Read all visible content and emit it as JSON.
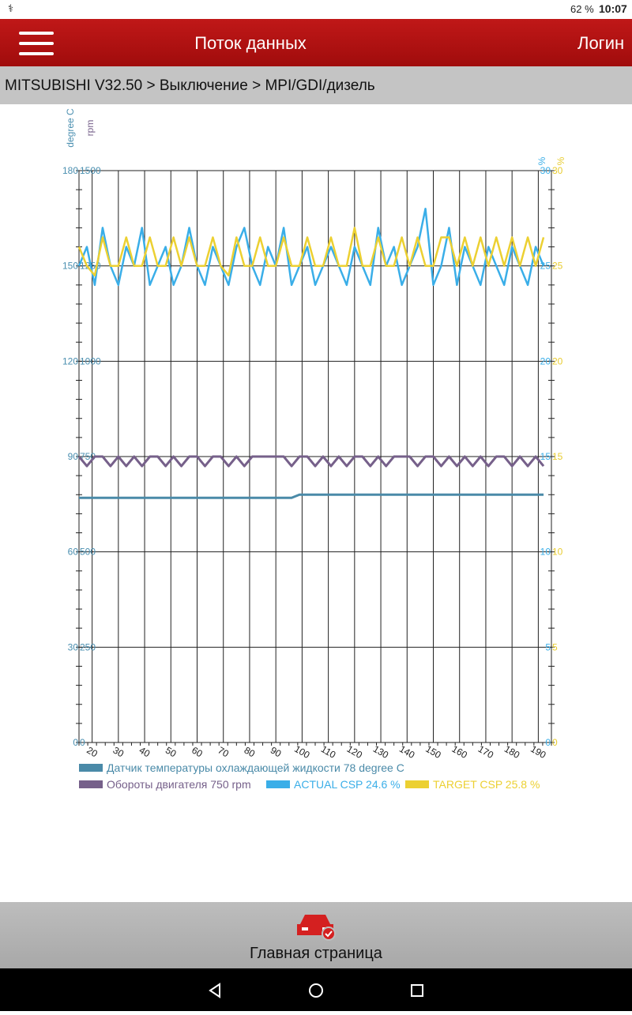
{
  "status_bar": {
    "battery": "62 %",
    "time": "10:07"
  },
  "header": {
    "title": "Поток данных",
    "login": "Логин"
  },
  "breadcrumb": "MITSUBISHI V32.50 > Выключение > MPI/GDI/дизель",
  "chart_data": {
    "type": "line",
    "x": [
      15,
      18,
      21,
      24,
      27,
      30,
      33,
      36,
      39,
      42,
      45,
      48,
      51,
      54,
      57,
      60,
      63,
      66,
      69,
      72,
      75,
      78,
      81,
      84,
      87,
      90,
      93,
      96,
      99,
      102,
      105,
      108,
      111,
      114,
      117,
      120,
      123,
      126,
      129,
      132,
      135,
      138,
      141,
      144,
      147,
      150,
      153,
      156,
      159,
      162,
      165,
      168,
      171,
      174,
      177,
      180,
      183,
      186,
      189,
      192
    ],
    "xlim": [
      15,
      195
    ],
    "xticks": [
      20,
      30,
      40,
      50,
      60,
      70,
      80,
      90,
      100,
      110,
      120,
      130,
      140,
      150,
      160,
      170,
      180,
      190
    ],
    "grid": true,
    "axes": [
      {
        "label": "degree C",
        "side": "left",
        "color": "#4a8fb0",
        "lim": [
          0,
          180
        ],
        "ticks": [
          0,
          30,
          60,
          90,
          120,
          150,
          180
        ]
      },
      {
        "label": "rpm",
        "side": "left",
        "color": "#4a8fb0",
        "lim": [
          0,
          1500
        ],
        "ticks": [
          0,
          250,
          500,
          750,
          1000,
          1250,
          1500
        ]
      },
      {
        "label": "%",
        "side": "right",
        "color": "#3aaee8",
        "lim": [
          0,
          30
        ],
        "ticks": [
          0,
          5,
          10,
          15,
          20,
          25,
          30
        ]
      },
      {
        "label": "%",
        "side": "right",
        "color": "#e8cc30",
        "lim": [
          0,
          30
        ],
        "ticks": [
          0,
          5,
          10,
          15,
          20,
          25,
          30
        ]
      }
    ],
    "series": [
      {
        "name": "Датчик температуры охлаждающей жидкости 78 degree C",
        "color": "#4a8aa8",
        "axis": 0,
        "values": [
          77,
          77,
          77,
          77,
          77,
          77,
          77,
          77,
          77,
          77,
          77,
          77,
          77,
          77,
          77,
          77,
          77,
          77,
          77,
          77,
          77,
          77,
          77,
          77,
          77,
          77,
          77,
          77,
          78,
          78,
          78,
          78,
          78,
          78,
          78,
          78,
          78,
          78,
          78,
          78,
          78,
          78,
          78,
          78,
          78,
          78,
          78,
          78,
          78,
          78,
          78,
          78,
          78,
          78,
          78,
          78,
          78,
          78,
          78,
          78
        ]
      },
      {
        "name": "Обороты двигателя 750 rpm",
        "color": "#76608a",
        "axis": 1,
        "values": [
          750,
          725,
          750,
          750,
          725,
          750,
          725,
          750,
          725,
          750,
          750,
          725,
          750,
          725,
          750,
          750,
          725,
          750,
          750,
          725,
          750,
          725,
          750,
          750,
          750,
          750,
          750,
          725,
          750,
          750,
          725,
          750,
          725,
          750,
          725,
          750,
          750,
          725,
          750,
          725,
          750,
          750,
          750,
          725,
          750,
          750,
          725,
          750,
          725,
          750,
          725,
          750,
          725,
          750,
          750,
          725,
          750,
          725,
          750,
          725
        ]
      },
      {
        "name": "ACTUAL CSP 24.6 %",
        "color": "#3aaee8",
        "axis": 2,
        "values": [
          25,
          26,
          24,
          27,
          25,
          24,
          26,
          25,
          27,
          24,
          25,
          26,
          24,
          25,
          27,
          25,
          24,
          26,
          25,
          24,
          26,
          27,
          25,
          24,
          26,
          25,
          27,
          24,
          25,
          26,
          24,
          25,
          26,
          25,
          24,
          26,
          25,
          24,
          27,
          25,
          26,
          24,
          25,
          26,
          28,
          24,
          25,
          27,
          24,
          26,
          25,
          24,
          26,
          25,
          24,
          26,
          25,
          24,
          26,
          25
        ]
      },
      {
        "name": "TARGET CSP 25.8 %",
        "color": "#ecd032",
        "axis": 3,
        "values": [
          26,
          25,
          24.5,
          26.5,
          25,
          25,
          26.5,
          25,
          25,
          26.5,
          25,
          25,
          26.5,
          25,
          26.5,
          25,
          25,
          26.5,
          25,
          24.5,
          26.5,
          25,
          25,
          26.5,
          25,
          25,
          26.5,
          25,
          25,
          26.5,
          25,
          25,
          26.5,
          25,
          25,
          27,
          25,
          25,
          26.5,
          25,
          25,
          26.5,
          25,
          26.5,
          25,
          25,
          26.5,
          26.5,
          25,
          26.5,
          25,
          26.5,
          25,
          26.5,
          25,
          26.5,
          25,
          26.5,
          25,
          26.5
        ]
      }
    ]
  },
  "footer": {
    "home": "Главная страница"
  }
}
